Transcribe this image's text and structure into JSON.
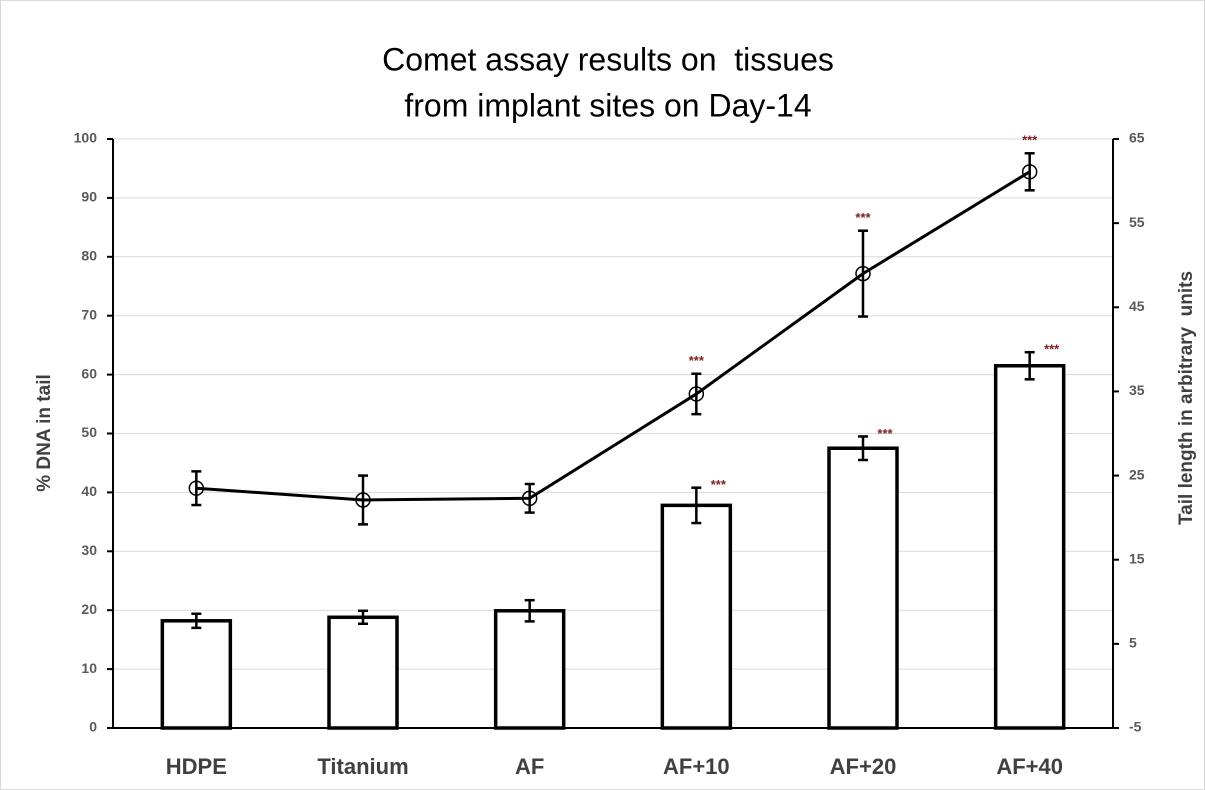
{
  "chart_data": {
    "type": "bar-line",
    "title": [
      "Comet assay results on  tissues",
      "from implant sites on Day-14"
    ],
    "ylabel": "% DNA in tail",
    "y2label": "Tail length in arbitrary  units",
    "categories": [
      "HDPE",
      "Titanium",
      "AF",
      "AF+10",
      "AF+20",
      "AF+40"
    ],
    "series": [
      {
        "type": "bar",
        "color": "#ffffff",
        "values": [
          18.2,
          18.8,
          19.9,
          37.8,
          47.5,
          61.5
        ],
        "errors": [
          1.2,
          1.1,
          1.8,
          3.0,
          2.0,
          2.3
        ],
        "annotations": [
          null,
          null,
          null,
          "***",
          "***",
          "***"
        ]
      },
      {
        "type": "line",
        "axis": "y2",
        "color": "#000000",
        "values": [
          23.5,
          22.1,
          22.3,
          34.7,
          49.0,
          61.1
        ],
        "errors": [
          2.0,
          2.9,
          1.7,
          2.4,
          5.1,
          2.2
        ],
        "annotations": [
          null,
          null,
          null,
          "***",
          "***",
          "***"
        ]
      }
    ],
    "ylim": [
      0,
      100
    ],
    "yticks": [
      0,
      10,
      20,
      30,
      40,
      50,
      60,
      70,
      80,
      90,
      100
    ],
    "y2lim": [
      -5,
      65
    ],
    "y2ticks": [
      -5,
      5,
      15,
      25,
      35,
      45,
      55,
      65
    ],
    "grid": true
  }
}
